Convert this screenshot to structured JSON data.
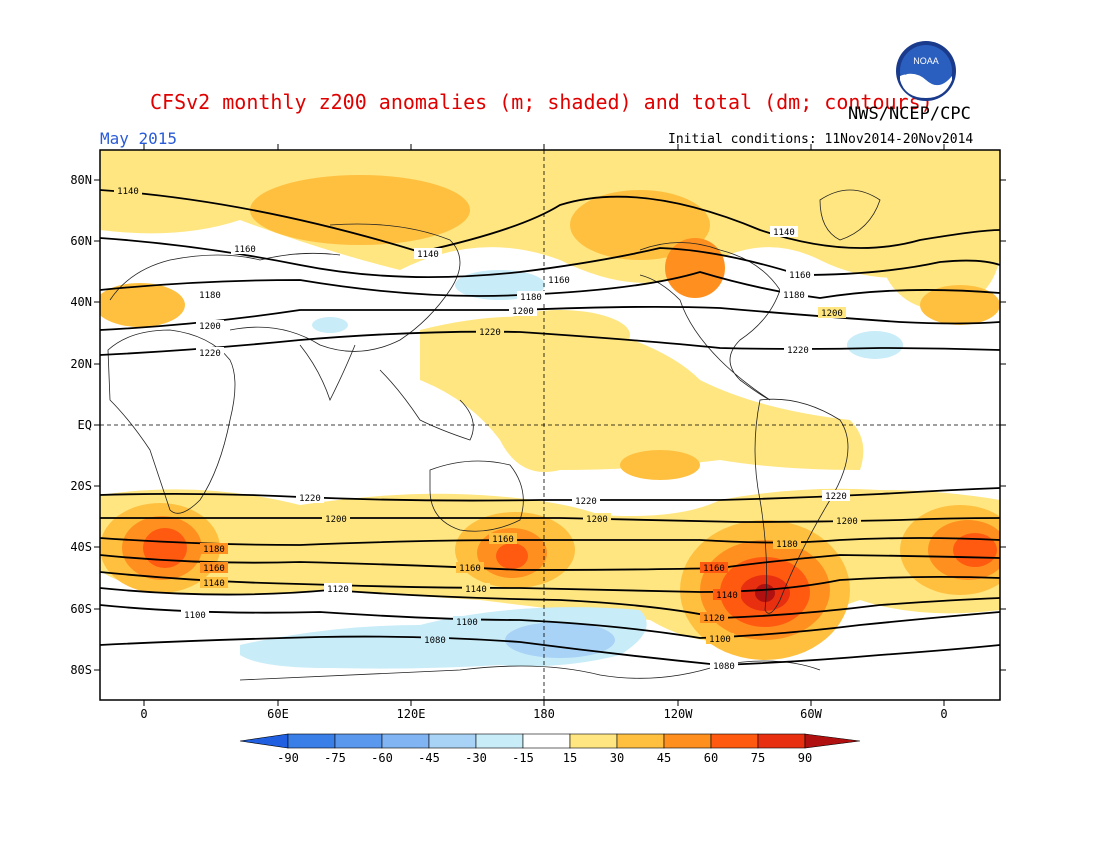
{
  "header": {
    "title": "CFSv2 monthly z200 anomalies (m; shaded) and total (dm; contours)",
    "agency": "NWS/NCEP/CPC",
    "date": "May 2015",
    "initial_conditions": "Initial conditions: 11Nov2014-20Nov2014",
    "logo_text": "NOAA"
  },
  "map": {
    "lat_labels": [
      "80N",
      "60N",
      "40N",
      "20N",
      "EQ",
      "20S",
      "40S",
      "60S",
      "80S"
    ],
    "lon_labels": [
      "0",
      "60E",
      "120E",
      "180",
      "120W",
      "60W",
      "0"
    ],
    "contour_labels": [
      "1140",
      "1160",
      "1180",
      "1200",
      "1220",
      "1100",
      "1120",
      "1080"
    ]
  },
  "colorbar": {
    "levels": [
      "-90",
      "-75",
      "-60",
      "-45",
      "-30",
      "-15",
      "15",
      "30",
      "45",
      "60",
      "75",
      "90"
    ],
    "colors": [
      "#2060e0",
      "#3a7ee8",
      "#5a98ee",
      "#80b4f2",
      "#a8d2f6",
      "#c8ecf8",
      "#ffffff",
      "#ffe680",
      "#ffc040",
      "#ff9020",
      "#ff5a10",
      "#e83010",
      "#b01010"
    ]
  }
}
